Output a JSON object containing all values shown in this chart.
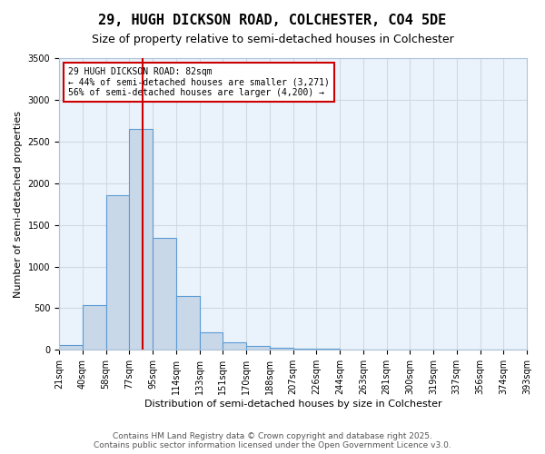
{
  "title": "29, HUGH DICKSON ROAD, COLCHESTER, CO4 5DE",
  "subtitle": "Size of property relative to semi-detached houses in Colchester",
  "xlabel": "Distribution of semi-detached houses by size in Colchester",
  "ylabel": "Number of semi-detached properties",
  "footnote1": "Contains HM Land Registry data © Crown copyright and database right 2025.",
  "footnote2": "Contains public sector information licensed under the Open Government Licence v3.0.",
  "bin_labels": [
    "21sqm",
    "40sqm",
    "58sqm",
    "77sqm",
    "95sqm",
    "114sqm",
    "133sqm",
    "151sqm",
    "170sqm",
    "188sqm",
    "207sqm",
    "226sqm",
    "244sqm",
    "263sqm",
    "281sqm",
    "300sqm",
    "319sqm",
    "337sqm",
    "356sqm",
    "374sqm",
    "393sqm"
  ],
  "bar_values": [
    60,
    540,
    1850,
    2650,
    1340,
    650,
    210,
    90,
    50,
    30,
    20,
    10,
    5,
    3,
    1,
    1,
    0,
    0,
    0,
    0
  ],
  "bar_color": "#c8d8e8",
  "bar_edge_color": "#5b9bd5",
  "grid_color": "#d0d8e0",
  "background_color": "#eaf2fb",
  "red_line_x": 3.58,
  "red_line_color": "#cc0000",
  "annotation_text": "29 HUGH DICKSON ROAD: 82sqm\n← 44% of semi-detached houses are smaller (3,271)\n56% of semi-detached houses are larger (4,200) →",
  "annotation_box_color": "#ffffff",
  "annotation_box_edge_color": "#cc0000",
  "ylim": [
    0,
    3500
  ],
  "yticks": [
    0,
    500,
    1000,
    1500,
    2000,
    2500,
    3000,
    3500
  ],
  "title_fontsize": 11,
  "subtitle_fontsize": 9,
  "axis_label_fontsize": 8,
  "tick_fontsize": 7,
  "annotation_fontsize": 7,
  "footnote_fontsize": 6.5
}
